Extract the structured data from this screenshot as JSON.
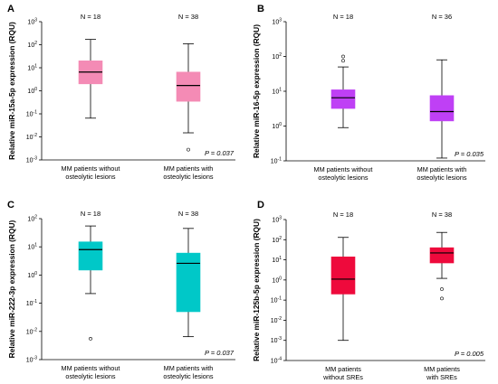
{
  "chart_data": [
    {
      "type": "box",
      "panel_label": "A",
      "ylabel": "Relative miR-15a-5p expression (RQU)",
      "ylim_exp": [
        -3,
        3
      ],
      "ticks": [
        {
          "base": "10",
          "exp": "3"
        },
        {
          "base": "10",
          "exp": "2"
        },
        {
          "base": "10",
          "exp": "1"
        },
        {
          "base": "10",
          "exp": "0"
        },
        {
          "base": "10",
          "exp": "-1"
        },
        {
          "base": "10",
          "exp": "-2"
        },
        {
          "base": "10",
          "exp": "-3"
        }
      ],
      "color": "#f48bb5",
      "p_value": "P = 0.037",
      "groups": [
        {
          "n_label": "N = 18",
          "category_lines": [
            "MM patients without",
            "osteolytic lesions"
          ],
          "whisker_low": 0.065,
          "q1": 2.0,
          "median": 6.5,
          "q3": 20,
          "whisker_high": 170,
          "outliers": []
        },
        {
          "n_label": "N = 38",
          "category_lines": [
            "MM patients with",
            "osteolytic lesions"
          ],
          "whisker_low": 0.015,
          "q1": 0.35,
          "median": 1.7,
          "q3": 6.5,
          "whisker_high": 110,
          "outliers": [
            0.0028
          ]
        }
      ]
    },
    {
      "type": "box",
      "panel_label": "B",
      "ylabel": "Relative miR-16-5p expression (RQU)",
      "ylim_exp": [
        -1,
        3
      ],
      "ticks": [
        {
          "base": "10",
          "exp": "3"
        },
        {
          "base": "10",
          "exp": "2"
        },
        {
          "base": "10",
          "exp": "1"
        },
        {
          "base": "10",
          "exp": "0"
        },
        {
          "base": "10",
          "exp": "-1"
        }
      ],
      "color": "#bf40f5",
      "p_value": "P = 0.035",
      "groups": [
        {
          "n_label": "N = 18",
          "category_lines": [
            "MM patients without",
            "osteolytic lesions"
          ],
          "whisker_low": 0.9,
          "q1": 3.2,
          "median": 6.5,
          "q3": 11,
          "whisker_high": 50,
          "outliers": [
            75,
            100
          ]
        },
        {
          "n_label": "N = 36",
          "category_lines": [
            "MM patients with",
            "osteolytic lesions"
          ],
          "whisker_low": 0.12,
          "q1": 1.4,
          "median": 2.6,
          "q3": 7.5,
          "whisker_high": 80,
          "outliers": []
        }
      ]
    },
    {
      "type": "box",
      "panel_label": "C",
      "ylabel": "Relative miR-222-3p expression (RQU)",
      "ylim_exp": [
        -3,
        2
      ],
      "ticks": [
        {
          "base": "10",
          "exp": "2"
        },
        {
          "base": "10",
          "exp": "1"
        },
        {
          "base": "10",
          "exp": "0"
        },
        {
          "base": "10",
          "exp": "-1"
        },
        {
          "base": "10",
          "exp": "-2"
        },
        {
          "base": "10",
          "exp": "-3"
        }
      ],
      "color": "#00c8c8",
      "p_value": "P = 0.037",
      "groups": [
        {
          "n_label": "N = 18",
          "category_lines": [
            "MM patients without",
            "osteolytic lesions"
          ],
          "whisker_low": 0.22,
          "q1": 1.5,
          "median": 8.0,
          "q3": 15,
          "whisker_high": 55,
          "outliers": [
            0.0055
          ]
        },
        {
          "n_label": "N = 38",
          "category_lines": [
            "MM patients with",
            "osteolytic lesions"
          ],
          "whisker_low": 0.0065,
          "q1": 0.05,
          "median": 2.6,
          "q3": 6.0,
          "whisker_high": 45,
          "outliers": []
        }
      ]
    },
    {
      "type": "box",
      "panel_label": "D",
      "ylabel": "Relative miR-125b-5p expression (RQU)",
      "ylim_exp": [
        -4,
        3
      ],
      "ticks": [
        {
          "base": "10",
          "exp": "3"
        },
        {
          "base": "10",
          "exp": "2"
        },
        {
          "base": "10",
          "exp": "1"
        },
        {
          "base": "10",
          "exp": "0"
        },
        {
          "base": "10",
          "exp": "-1"
        },
        {
          "base": "10",
          "exp": "-2"
        },
        {
          "base": "10",
          "exp": "-3"
        },
        {
          "base": "10",
          "exp": "-4"
        }
      ],
      "color": "#ee0a3c",
      "p_value": "P = 0.005",
      "groups": [
        {
          "n_label": "N = 18",
          "category_lines": [
            "MM patients",
            "without SREs"
          ],
          "whisker_low": 0.001,
          "q1": 0.2,
          "median": 1.1,
          "q3": 14,
          "whisker_high": 130,
          "outliers": []
        },
        {
          "n_label": "N = 38",
          "category_lines": [
            "MM patients",
            "with SREs"
          ],
          "whisker_low": 1.2,
          "q1": 7.0,
          "median": 22,
          "q3": 40,
          "whisker_high": 230,
          "outliers": [
            0.35,
            0.12
          ]
        }
      ]
    }
  ]
}
